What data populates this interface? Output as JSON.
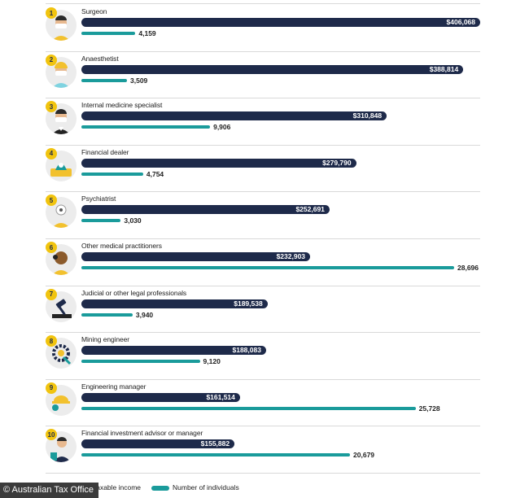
{
  "chart_data": {
    "type": "bar",
    "categories": [
      "Surgeon",
      "Anaesthetist",
      "Internal medicine specialist",
      "Financial dealer",
      "Psychiatrist",
      "Other medical practitioners",
      "Judicial or other legal professionals",
      "Mining engineer",
      "Engineering manager",
      "Financial investment advisor or manager"
    ],
    "ranks": [
      "1",
      "2",
      "3",
      "4",
      "5",
      "6",
      "7",
      "8",
      "9",
      "10"
    ],
    "icons": [
      "surgeon-icon",
      "anaesthetist-icon",
      "internal-medicine-specialist-icon",
      "financial-dealer-icon",
      "psychiatrist-icon",
      "medical-practitioner-icon",
      "gavel-icon",
      "mining-engineer-icon",
      "engineering-manager-icon",
      "financial-advisor-icon"
    ],
    "series": [
      {
        "name": "Average taxable income",
        "values": [
          406068,
          388814,
          310848,
          279790,
          252691,
          232903,
          189538,
          188083,
          161514,
          155882
        ],
        "labels": [
          "$406,068",
          "$388,814",
          "$310,848",
          "$279,790",
          "$252,691",
          "$232,903",
          "$189,538",
          "$188,083",
          "$161,514",
          "$155,882"
        ],
        "color": "#1e2a4a"
      },
      {
        "name": "Number of individuals",
        "values": [
          4159,
          3509,
          9906,
          4754,
          3030,
          28696,
          3940,
          9120,
          25728,
          20679
        ],
        "labels": [
          "4,159",
          "3,509",
          "9,906",
          "4,754",
          "3,030",
          "28,696",
          "3,940",
          "9,120",
          "25,728",
          "20,679"
        ],
        "color": "#1a9b9b"
      }
    ],
    "legend": {
      "placement": "bottom",
      "income_label": "Average taxable income",
      "individuals_label": "Number of individuals"
    },
    "badge_color": "#f1c40f"
  },
  "source_credit": "© Australian Tax Office"
}
